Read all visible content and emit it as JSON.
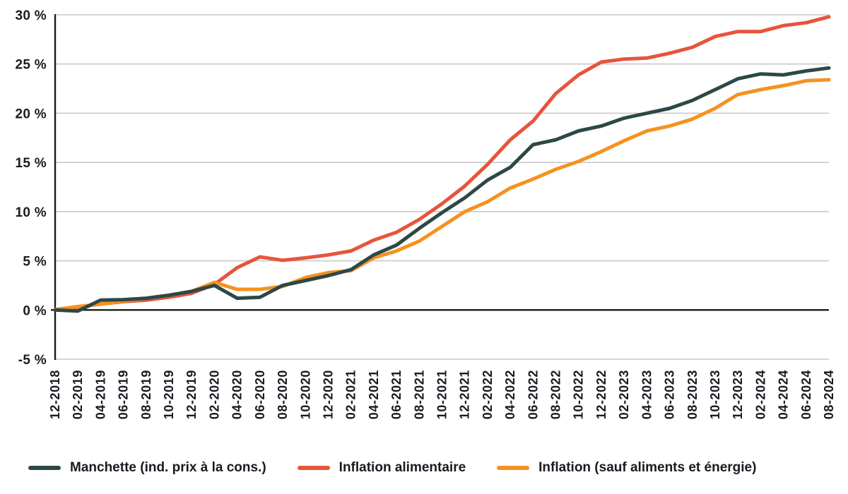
{
  "chart_data": {
    "type": "line",
    "title": "",
    "x_labels": [
      "12-2018",
      "02-2019",
      "04-2019",
      "06-2019",
      "08-2019",
      "10-2019",
      "12-2019",
      "02-2020",
      "04-2020",
      "06-2020",
      "08-2020",
      "10-2020",
      "12-2020",
      "02-2021",
      "04-2021",
      "06-2021",
      "08-2021",
      "10-2021",
      "12-2021",
      "02-2022",
      "04-2022",
      "06-2022",
      "08-2022",
      "10-2022",
      "12-2022",
      "02-2023",
      "04-2023",
      "06-2023",
      "08-2023",
      "10-2023",
      "12-2023",
      "02-2024",
      "04-2024",
      "06-2024",
      "08-2024"
    ],
    "y_axis": {
      "min": -5,
      "max": 30,
      "step": 5,
      "tick_values": [
        30,
        25,
        20,
        15,
        10,
        5,
        0,
        -5
      ],
      "tick_labels": [
        "30 %",
        "25 %",
        "20 %",
        "15 %",
        "10 %",
        "5 %",
        "0 %",
        "-5 %"
      ],
      "unit": "%"
    },
    "grid": true,
    "legend_position": "bottom",
    "series": [
      {
        "name": "Manchette (ind. prix à la cons.)",
        "color": "#2d4846",
        "values": [
          0.0,
          -0.1,
          1.0,
          1.05,
          1.2,
          1.5,
          1.9,
          2.5,
          1.2,
          1.3,
          2.5,
          3.0,
          3.5,
          4.1,
          5.6,
          6.6,
          8.3,
          9.9,
          11.4,
          13.2,
          14.5,
          16.8,
          17.3,
          18.2,
          18.7,
          19.5,
          20.0,
          20.5,
          21.3,
          22.4,
          23.5,
          24.0,
          23.9,
          24.3,
          24.6
        ]
      },
      {
        "name": "Inflation alimentaire",
        "color": "#e6553c",
        "values": [
          0.0,
          0.3,
          0.6,
          0.85,
          1.0,
          1.3,
          1.7,
          2.6,
          4.3,
          5.4,
          5.05,
          5.3,
          5.6,
          6.0,
          7.1,
          7.9,
          9.2,
          10.8,
          12.6,
          14.8,
          17.3,
          19.2,
          22.0,
          23.9,
          25.2,
          25.5,
          25.6,
          26.1,
          26.7,
          27.8,
          28.3,
          28.3,
          28.9,
          29.2,
          29.8
        ]
      },
      {
        "name": "Inflation (sauf aliments et énergie)",
        "color": "#f5921e",
        "values": [
          0.05,
          0.35,
          0.6,
          0.9,
          1.2,
          1.5,
          1.9,
          2.8,
          2.1,
          2.1,
          2.4,
          3.3,
          3.8,
          4.0,
          5.3,
          6.0,
          7.0,
          8.5,
          10.0,
          11.0,
          12.4,
          13.3,
          14.3,
          15.1,
          16.1,
          17.2,
          18.2,
          18.7,
          19.4,
          20.5,
          21.9,
          22.4,
          22.8,
          23.3,
          23.4
        ]
      }
    ]
  },
  "colors": {
    "background": "#ffffff",
    "grid": "#c9c9c9",
    "zero_line": "#111111",
    "axis": "#1a1a22",
    "text": "#1a1a22"
  }
}
